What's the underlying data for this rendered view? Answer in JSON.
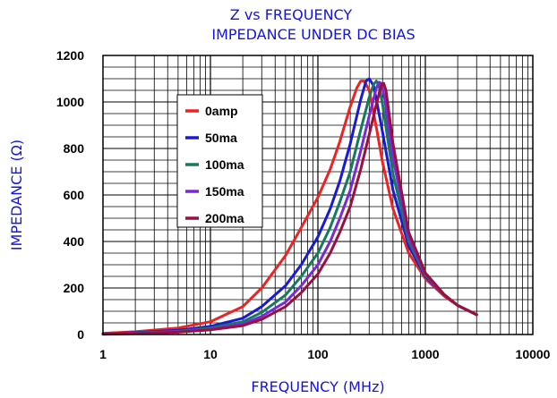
{
  "chart_data": {
    "type": "line",
    "title": "Z vs FREQUENCY",
    "subtitle": "IMPEDANCE UNDER DC BIAS",
    "xlabel": "FREQUENCY (MHz)",
    "ylabel": "IMPEDANCE (Ω)",
    "xscale": "log",
    "xlim": [
      1,
      10000
    ],
    "ylim": [
      0,
      1200
    ],
    "grid": true,
    "legend_position": "top-left",
    "x_ticks": [
      {
        "value": 1,
        "label": "1"
      },
      {
        "value": 10,
        "label": "10"
      },
      {
        "value": 100,
        "label": "100"
      },
      {
        "value": 1000,
        "label": "1000"
      },
      {
        "value": 10000,
        "label": "10000"
      }
    ],
    "y_ticks": [
      {
        "value": 0,
        "label": "0"
      },
      {
        "value": 200,
        "label": "200"
      },
      {
        "value": 400,
        "label": "400"
      },
      {
        "value": 600,
        "label": "600"
      },
      {
        "value": 800,
        "label": "800"
      },
      {
        "value": 1000,
        "label": "1000"
      },
      {
        "value": 1200,
        "label": "1200"
      }
    ],
    "series": [
      {
        "name": "0amp",
        "color": "#ee2222",
        "x": [
          1,
          2,
          5,
          10,
          20,
          30,
          50,
          70,
          100,
          130,
          160,
          200,
          230,
          250,
          270,
          300,
          350,
          400,
          500,
          700,
          1000,
          1500,
          2000,
          3000
        ],
        "y": [
          5,
          12,
          28,
          55,
          120,
          200,
          340,
          460,
          590,
          710,
          830,
          980,
          1060,
          1090,
          1090,
          1050,
          890,
          740,
          540,
          350,
          240,
          165,
          125,
          85
        ]
      },
      {
        "name": "50ma",
        "color": "#1a1ad4",
        "x": [
          1,
          2,
          5,
          10,
          20,
          30,
          50,
          70,
          100,
          130,
          160,
          200,
          250,
          280,
          300,
          330,
          360,
          400,
          500,
          700,
          1000,
          1500,
          2000,
          3000
        ],
        "y": [
          3,
          8,
          18,
          35,
          70,
          120,
          210,
          300,
          420,
          540,
          660,
          820,
          1010,
          1090,
          1100,
          1070,
          980,
          870,
          620,
          380,
          250,
          170,
          125,
          85
        ]
      },
      {
        "name": "100ma",
        "color": "#137a5a",
        "x": [
          1,
          2,
          5,
          10,
          20,
          30,
          50,
          70,
          100,
          130,
          160,
          200,
          250,
          300,
          330,
          350,
          370,
          400,
          450,
          500,
          700,
          1000,
          1500,
          2000,
          3000
        ],
        "y": [
          2,
          6,
          14,
          28,
          55,
          95,
          170,
          250,
          350,
          460,
          570,
          700,
          880,
          1020,
          1075,
          1090,
          1070,
          990,
          830,
          690,
          400,
          255,
          170,
          125,
          85
        ]
      },
      {
        "name": "150ma",
        "color": "#7a28d8",
        "x": [
          1,
          2,
          5,
          10,
          20,
          30,
          50,
          70,
          100,
          130,
          160,
          200,
          250,
          300,
          350,
          370,
          390,
          420,
          450,
          500,
          700,
          1000,
          1500,
          2000,
          3000
        ],
        "y": [
          2,
          5,
          12,
          23,
          45,
          78,
          140,
          210,
          300,
          400,
          500,
          620,
          790,
          940,
          1060,
          1085,
          1080,
          1010,
          900,
          760,
          420,
          260,
          170,
          125,
          85
        ]
      },
      {
        "name": "200ma",
        "color": "#990f3e",
        "x": [
          1,
          2,
          5,
          10,
          20,
          30,
          50,
          70,
          100,
          130,
          160,
          200,
          250,
          300,
          350,
          390,
          410,
          430,
          460,
          500,
          700,
          1000,
          1500,
          2000,
          3000
        ],
        "y": [
          1,
          4,
          10,
          20,
          38,
          65,
          120,
          180,
          260,
          350,
          440,
          550,
          710,
          860,
          990,
          1075,
          1080,
          1050,
          950,
          820,
          440,
          265,
          172,
          125,
          85
        ]
      }
    ]
  }
}
